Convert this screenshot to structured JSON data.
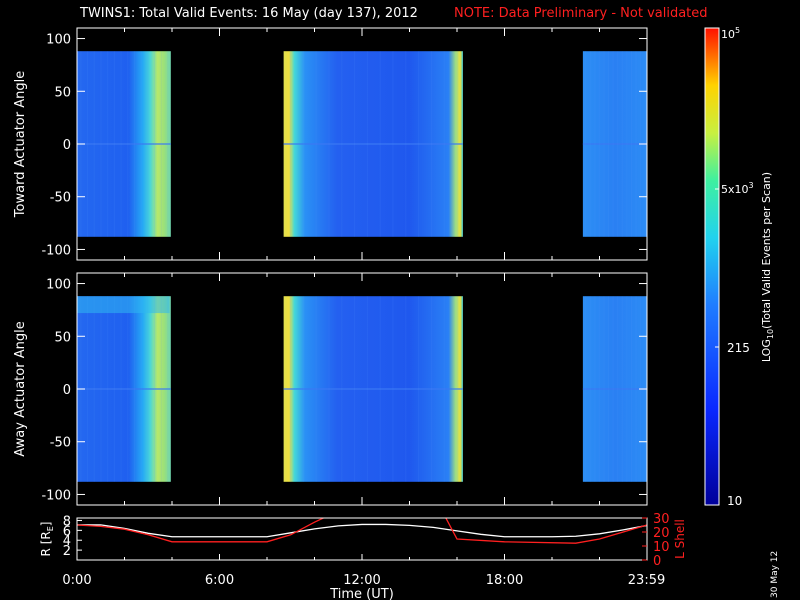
{
  "title": {
    "main": "TWINS1: Total Valid Events: 16 May (day 137), 2012",
    "note": "NOTE: Data Preliminary - Not validated"
  },
  "date_stamp": "30 May 12",
  "colors": {
    "background": "#000000",
    "axes": "#ffffff",
    "note": "#ff2020",
    "r_line": "#ffffff",
    "lshell_line": "#ff2020"
  },
  "chart_data": [
    {
      "type": "heatmap",
      "ylabel": "Toward Actuator Angle",
      "ylim": [
        -110,
        110
      ],
      "yticks": [
        100,
        50,
        0,
        -50,
        -100
      ],
      "angle_range": [
        -88,
        88
      ],
      "xlim_hours": [
        0,
        24
      ],
      "data_segments_hours": [
        [
          0,
          3.95
        ],
        [
          8.7,
          16.25
        ],
        [
          21.3,
          24
        ]
      ],
      "colorscale": "log10(Total Valid Events per Scan)",
      "values": "mostly ~1e3 (blue), bright edges ~5e3 (yellow/green) at segment boundaries"
    },
    {
      "type": "heatmap",
      "ylabel": "Away Actuator Angle",
      "ylim": [
        -110,
        110
      ],
      "yticks": [
        100,
        50,
        0,
        -50,
        -100
      ],
      "angle_range": [
        -88,
        88
      ],
      "xlim_hours": [
        0,
        24
      ],
      "data_segments_hours": [
        [
          0,
          3.95
        ],
        [
          8.7,
          16.25
        ],
        [
          21.3,
          24
        ]
      ],
      "colorscale": "log10(Total Valid Events per Scan)",
      "values": "mostly ~1e3 (blue), bright edges ~5e3 (yellow/green) at segment boundaries"
    },
    {
      "type": "line",
      "xlabel": "Time (UT)",
      "xticks": [
        "0:00",
        "6:00",
        "12:00",
        "18:00",
        "23:59"
      ],
      "xtick_hours": [
        0,
        6,
        12,
        18,
        23.98
      ],
      "left_axis": {
        "label_pre": "R [R",
        "label_sub": "E",
        "label_post": "]",
        "ticks": [
          2,
          4,
          6,
          8
        ],
        "ylim": [
          0,
          8.5
        ]
      },
      "right_axis": {
        "label": "L Shell",
        "ticks": [
          0,
          10,
          20,
          30
        ],
        "ylim": [
          0,
          30
        ]
      },
      "series": [
        {
          "axis": "left",
          "x": [
            0,
            1,
            2,
            3,
            4,
            5,
            6,
            7,
            8,
            9,
            10,
            11,
            12,
            13,
            14,
            15,
            16,
            17,
            18,
            19,
            20,
            21,
            22,
            23,
            24
          ],
          "values": [
            7.1,
            7.1,
            6.4,
            5.4,
            4.7,
            4.7,
            4.7,
            4.7,
            4.7,
            5.5,
            6.3,
            6.9,
            7.2,
            7.2,
            7.0,
            6.6,
            5.9,
            5.2,
            4.7,
            4.7,
            4.7,
            4.8,
            5.3,
            6.1,
            7.0
          ]
        },
        {
          "axis": "right",
          "x": [
            0,
            1,
            2,
            3,
            4,
            6,
            8,
            9,
            10,
            10.5,
            15.5,
            16,
            18,
            21,
            22,
            23,
            24
          ],
          "values": [
            25,
            24,
            22,
            18,
            13,
            13,
            13,
            18,
            27,
            31,
            31,
            15,
            13,
            12,
            15,
            20,
            25
          ]
        }
      ]
    }
  ],
  "colorbar": {
    "label_pre": "LOG",
    "label_sub": "10",
    "label_post": "(Total Valid Events per Scan)",
    "top_base": "10",
    "top_exp": "5",
    "mid_base": "5x10",
    "mid_exp": "3",
    "tick_215": "215",
    "tick_10": "10"
  }
}
